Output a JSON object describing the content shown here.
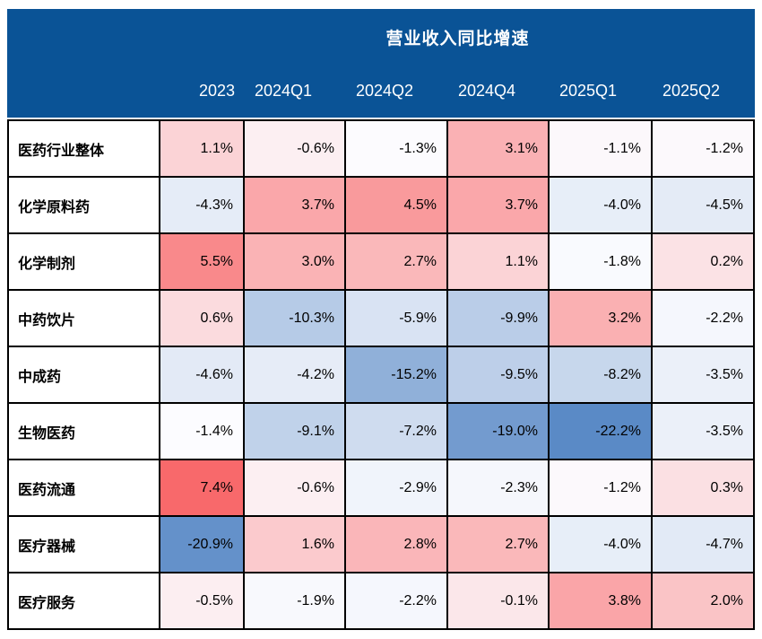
{
  "chart_data": {
    "type": "heatmap",
    "title": "营业收入同比增速",
    "unit": "%",
    "columns": [
      "2023",
      "2024Q1",
      "2024Q2",
      "2024Q4",
      "2025Q1",
      "2025Q2"
    ],
    "rows": [
      {
        "label": "医药行业整体",
        "values": [
          1.1,
          -0.6,
          -1.3,
          3.1,
          -1.1,
          -1.2
        ]
      },
      {
        "label": "化学原料药",
        "values": [
          -4.3,
          3.7,
          4.5,
          3.7,
          -4.0,
          -4.5
        ]
      },
      {
        "label": "化学制剂",
        "values": [
          5.5,
          3.0,
          2.7,
          1.1,
          -1.8,
          0.2
        ]
      },
      {
        "label": "中药饮片",
        "values": [
          0.6,
          -10.3,
          -5.9,
          -9.9,
          3.2,
          -2.2
        ]
      },
      {
        "label": "中成药",
        "values": [
          -4.6,
          -4.2,
          -15.2,
          -9.5,
          -8.2,
          -3.5
        ]
      },
      {
        "label": "生物医药",
        "values": [
          -1.4,
          -9.1,
          -7.2,
          -19.0,
          -22.2,
          -3.5
        ]
      },
      {
        "label": "医药流通",
        "values": [
          7.4,
          -0.6,
          -2.9,
          -2.3,
          -1.2,
          0.3
        ]
      },
      {
        "label": "医疗器械",
        "values": [
          -20.9,
          1.6,
          2.8,
          2.7,
          -4.0,
          -4.7
        ]
      },
      {
        "label": "医疗服务",
        "values": [
          -0.5,
          -1.9,
          -2.2,
          -0.1,
          3.8,
          2.0
        ]
      }
    ],
    "color_scale": {
      "min_value": -22.2,
      "mid_value": -1.35,
      "max_value": 7.4,
      "min_color": "#5A8AC6",
      "mid_color": "#FCFCFF",
      "max_color": "#F8696B"
    },
    "layout": {
      "header_bg": "#0A5396",
      "header_text_color": "#FFFFFF",
      "grid_color": "#000000",
      "legend": false,
      "value_format": "one_decimal_percent"
    }
  }
}
